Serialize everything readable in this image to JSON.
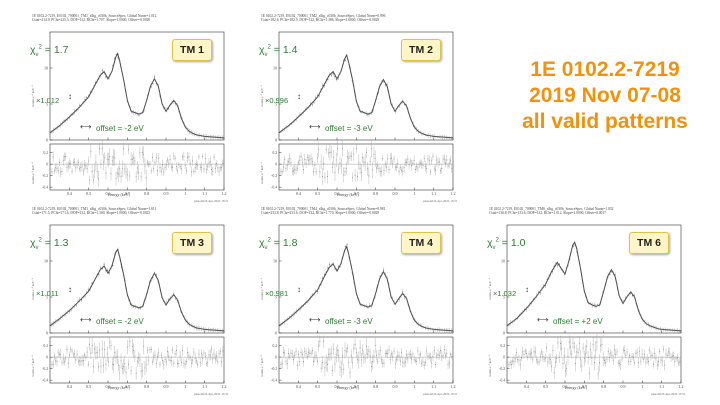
{
  "title_lines": [
    "1E 0102.2-7219",
    "2019 Nov 07-08",
    "all valid patterns"
  ],
  "energy_label": "Energy (keV)",
  "y_label_top": "counts s⁻¹ keV⁻¹",
  "y_label_bottom": "counts s⁻¹ keV⁻¹",
  "colors": {
    "title": "#f2920c",
    "annotation": "#2e7d32",
    "model": "#555555",
    "data": "#777777",
    "badge": "#fff6c8"
  },
  "panels": [
    {
      "id": "TM 1",
      "header1": "1E 0102.2-7219, E0102_700001_TM1_xlhg_c030b_SourceSpec, Global Norm=1.012",
      "header2": "Cstat=214.9, PChi=225.3, DOF=132, RChi=1.707, Slope=1.0000, Offset=-0.0020",
      "chi_value": "1.7",
      "norm_value": "×1.012",
      "offset_label": "offset = -2 eV",
      "stamp": "plasolab  8-Apr-2022 15:51"
    },
    {
      "id": "TM 2",
      "header1": "1E 0102.2-7219, E0102_700001_TM2_xlhg_c030b_SourceSpec, Global Norm=0.996",
      "header2": "Cstat=182.6, PChi=182.9, DOF=132, RChi=1.386, Slope=1.0000, Offset=-0.0029",
      "chi_value": "1.4",
      "norm_value": "×0.996",
      "offset_label": "offset = -3 eV",
      "stamp": "plasolab  8-Apr-2022 15:51"
    },
    {
      "id": "TM 3",
      "header1": "1E 0102.2-7219, E0102_700001_TM3_xlhg_c030b_SourceSpec, Global Norm=1.011",
      "header2": "Cstat=171.5, PChi=171.6, DOF=132, RChi=1.300, Slope=1.0000, Offset=-0.0023",
      "chi_value": "1.3",
      "norm_value": "×1.011",
      "offset_label": "offset = -2 eV",
      "stamp": "plasolab  8-Apr-2022 15:51"
    },
    {
      "id": "TM 4",
      "header1": "1E 0102.2-7219, E0102_700001_TM4_xlhg_c030b_SourceSpec, Global Norm=0.981",
      "header2": "Cstat=233.8, PChi=233.6, DOF=132, RChi=1.770, Slope=1.0000, Offset=-0.0029",
      "chi_value": "1.8",
      "norm_value": "×0.981",
      "offset_label": "offset = -3 eV",
      "stamp": "plasolab  8-Apr-2022 15:51"
    },
    {
      "id": "TM 6",
      "header1": "1E 0102.2-7219, E0102_700001_TM6_xlhg_c030b_SourceSpec, Global Norm=1.032",
      "header2": "Cstat=130.8, PChi=133.6, DOF=132, RChi=1.012, Slope=1.0000, Offset=0.0017",
      "chi_value": "1.0",
      "norm_value": "×1.032",
      "offset_label": "offset = +2 eV",
      "stamp": "plasolab  8-Apr-2022 15:51"
    }
  ],
  "chart_data": {
    "type": "line",
    "xlabel": "Energy (keV)",
    "ylabel": "counts s⁻¹ keV⁻¹",
    "xlim": [
      0.3,
      1.2
    ],
    "x_ticks": [
      0.4,
      0.5,
      0.6,
      0.7,
      0.8,
      0.9,
      1,
      1.1,
      1.2
    ],
    "top": {
      "ylim": [
        0,
        15
      ],
      "y_ticks": [
        0,
        5,
        10
      ],
      "x": [
        0.3,
        0.35,
        0.4,
        0.45,
        0.5,
        0.53,
        0.56,
        0.58,
        0.6,
        0.62,
        0.64,
        0.65,
        0.66,
        0.68,
        0.7,
        0.72,
        0.74,
        0.76,
        0.78,
        0.8,
        0.82,
        0.84,
        0.86,
        0.88,
        0.9,
        0.92,
        0.94,
        0.96,
        0.98,
        1.0,
        1.02,
        1.04,
        1.06,
        1.08,
        1.1,
        1.15,
        1.2
      ],
      "series": [
        {
          "name": "TM1",
          "values": [
            1.0,
            2.0,
            3.2,
            4.5,
            6.0,
            7.5,
            9.0,
            9.5,
            8.5,
            9.5,
            11.5,
            12.0,
            11.0,
            8.5,
            5.5,
            4.0,
            3.8,
            3.6,
            3.8,
            5.5,
            7.5,
            8.5,
            7.5,
            5.0,
            4.0,
            4.8,
            5.5,
            4.8,
            3.0,
            1.8,
            1.2,
            0.9,
            0.7,
            0.6,
            0.5,
            0.4,
            0.3
          ]
        },
        {
          "name": "TM2",
          "values": [
            1.0,
            2.0,
            3.2,
            4.5,
            6.0,
            7.5,
            9.0,
            9.5,
            8.5,
            9.5,
            11.3,
            11.8,
            10.8,
            8.4,
            5.4,
            4.0,
            3.8,
            3.6,
            3.8,
            5.5,
            7.4,
            8.4,
            7.4,
            5.0,
            4.0,
            4.8,
            5.4,
            4.7,
            3.0,
            1.8,
            1.2,
            0.9,
            0.7,
            0.6,
            0.5,
            0.4,
            0.3
          ]
        },
        {
          "name": "TM3",
          "values": [
            1.0,
            2.0,
            3.1,
            4.4,
            5.8,
            7.3,
            8.8,
            9.3,
            8.3,
            9.3,
            11.2,
            11.6,
            10.6,
            8.2,
            5.3,
            3.9,
            3.7,
            3.5,
            3.7,
            5.4,
            7.3,
            8.3,
            7.3,
            4.9,
            3.9,
            4.7,
            5.3,
            4.6,
            2.9,
            1.8,
            1.2,
            0.9,
            0.7,
            0.6,
            0.5,
            0.4,
            0.3
          ]
        },
        {
          "name": "TM4",
          "values": [
            1.0,
            2.0,
            3.2,
            4.5,
            6.0,
            7.6,
            9.1,
            9.6,
            8.6,
            9.6,
            11.5,
            12.0,
            11.0,
            8.5,
            5.5,
            4.0,
            3.8,
            3.6,
            3.8,
            5.5,
            7.5,
            8.5,
            7.5,
            5.0,
            4.0,
            4.8,
            5.5,
            4.8,
            3.0,
            1.8,
            1.2,
            0.9,
            0.7,
            0.6,
            0.5,
            0.4,
            0.3
          ]
        },
        {
          "name": "TM6",
          "values": [
            1.0,
            2.0,
            3.4,
            5.0,
            6.8,
            8.5,
            9.8,
            9.0,
            8.2,
            10.0,
            12.2,
            12.6,
            11.8,
            9.0,
            5.8,
            4.2,
            3.9,
            3.7,
            3.9,
            5.8,
            7.8,
            8.8,
            7.8,
            5.2,
            4.1,
            5.0,
            5.7,
            5.0,
            3.1,
            1.9,
            1.3,
            1.0,
            0.8,
            0.6,
            0.5,
            0.4,
            0.3
          ]
        }
      ]
    },
    "bottom": {
      "ylim": [
        -0.45,
        0.35
      ],
      "y_ticks": [
        -0.4,
        -0.2,
        0,
        0.2
      ]
    }
  }
}
